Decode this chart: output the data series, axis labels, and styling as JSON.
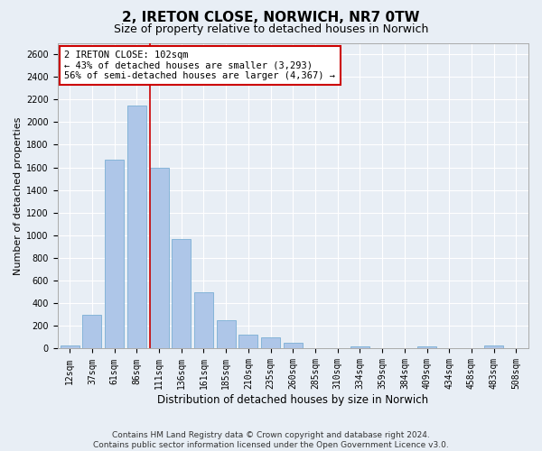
{
  "title": "2, IRETON CLOSE, NORWICH, NR7 0TW",
  "subtitle": "Size of property relative to detached houses in Norwich",
  "xlabel": "Distribution of detached houses by size in Norwich",
  "ylabel": "Number of detached properties",
  "categories": [
    "12sqm",
    "37sqm",
    "61sqm",
    "86sqm",
    "111sqm",
    "136sqm",
    "161sqm",
    "185sqm",
    "210sqm",
    "235sqm",
    "260sqm",
    "285sqm",
    "310sqm",
    "334sqm",
    "359sqm",
    "384sqm",
    "409sqm",
    "434sqm",
    "458sqm",
    "483sqm",
    "508sqm"
  ],
  "values": [
    25,
    300,
    1670,
    2150,
    1600,
    970,
    500,
    248,
    120,
    100,
    48,
    5,
    5,
    20,
    5,
    5,
    18,
    5,
    5,
    25,
    2
  ],
  "bar_color": "#aec6e8",
  "bar_edge_color": "#7aaed4",
  "vline_color": "#cc0000",
  "vline_position": 3.575,
  "annotation_text": "2 IRETON CLOSE: 102sqm\n← 43% of detached houses are smaller (3,293)\n56% of semi-detached houses are larger (4,367) →",
  "annotation_box_facecolor": "#ffffff",
  "annotation_box_edgecolor": "#cc0000",
  "ylim": [
    0,
    2700
  ],
  "yticks": [
    0,
    200,
    400,
    600,
    800,
    1000,
    1200,
    1400,
    1600,
    1800,
    2000,
    2200,
    2400,
    2600
  ],
  "background_color": "#e8eef5",
  "grid_color": "#ffffff",
  "title_fontsize": 11,
  "subtitle_fontsize": 9,
  "ylabel_fontsize": 8,
  "xlabel_fontsize": 8.5,
  "tick_fontsize": 7,
  "annotation_fontsize": 7.5,
  "footer_fontsize": 6.5,
  "footer_line1": "Contains HM Land Registry data © Crown copyright and database right 2024.",
  "footer_line2": "Contains public sector information licensed under the Open Government Licence v3.0."
}
